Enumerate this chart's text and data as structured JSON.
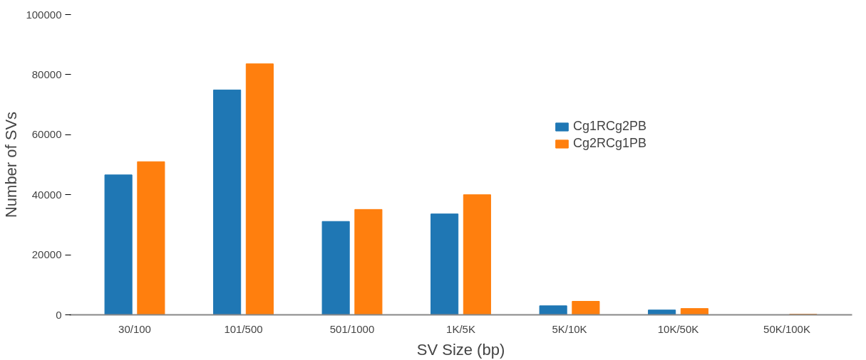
{
  "chart_data": {
    "type": "bar",
    "xlabel": "SV Size (bp)",
    "ylabel": "Number of SVs",
    "categories": [
      "30/100",
      "101/500",
      "501/1000",
      "1K/5K",
      "5K/10K",
      "10K/50K",
      "50K/100K"
    ],
    "series": [
      {
        "name": "Cg1RCg2PB",
        "color": "#1f77b4",
        "values": [
          46600,
          74900,
          31100,
          33600,
          3000,
          1600,
          0
        ]
      },
      {
        "name": "Cg2RCg1PB",
        "color": "#ff7f0e",
        "values": [
          51000,
          83600,
          35100,
          40000,
          4500,
          2100,
          200
        ]
      }
    ],
    "ylim": [
      0,
      100000
    ],
    "yticks": [
      0,
      20000,
      40000,
      60000,
      80000,
      100000
    ],
    "grid": false,
    "legend": "right"
  }
}
